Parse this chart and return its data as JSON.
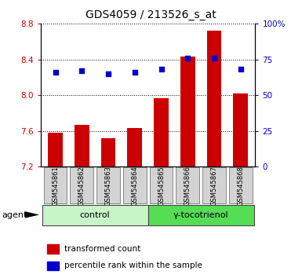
{
  "title": "GDS4059 / 213526_s_at",
  "samples": [
    "GSM545861",
    "GSM545862",
    "GSM545863",
    "GSM545864",
    "GSM545865",
    "GSM545866",
    "GSM545867",
    "GSM545868"
  ],
  "transformed_count": [
    7.58,
    7.67,
    7.52,
    7.63,
    7.97,
    8.43,
    8.72,
    8.02
  ],
  "percentile_rank": [
    66,
    67,
    65,
    66,
    68,
    76,
    76,
    68
  ],
  "ylim_left": [
    7.2,
    8.8
  ],
  "ylim_right": [
    0,
    100
  ],
  "yticks_left": [
    7.2,
    7.6,
    8.0,
    8.4,
    8.8
  ],
  "yticks_right": [
    0,
    25,
    50,
    75,
    100
  ],
  "ytick_labels_right": [
    "0",
    "25",
    "50",
    "75",
    "100%"
  ],
  "groups": [
    {
      "label": "control",
      "indices": [
        0,
        1,
        2,
        3
      ],
      "color": "#c8f5c8"
    },
    {
      "label": "γ-tocotrienol",
      "indices": [
        4,
        5,
        6,
        7
      ],
      "color": "#55dd55"
    }
  ],
  "bar_color": "#cc0000",
  "dot_color": "#0000cc",
  "grid_color": "#000000",
  "background_color": "#ffffff",
  "tick_label_box_color": "#d3d3d3",
  "agent_label": "agent",
  "legend_bar_label": "transformed count",
  "legend_dot_label": "percentile rank within the sample",
  "title_fontsize": 10,
  "tick_fontsize": 7.5,
  "sample_fontsize": 6.0,
  "group_fontsize": 8.0,
  "legend_fontsize": 7.5,
  "agent_fontsize": 8.0
}
